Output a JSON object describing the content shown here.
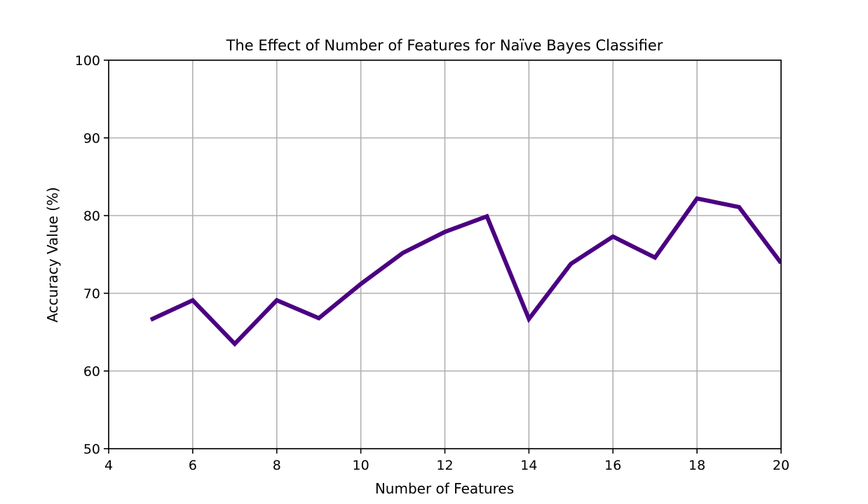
{
  "chart_data": {
    "type": "line",
    "title": "The Effect of Number of Features for Naïve Bayes Classifier",
    "xlabel": "Number of Features",
    "ylabel": "Accuracy Value (%)",
    "xlim": [
      4,
      20
    ],
    "ylim": [
      50,
      100
    ],
    "xticks": [
      "4",
      "6",
      "8",
      "10",
      "12",
      "14",
      "16",
      "18",
      "20"
    ],
    "yticks": [
      "50",
      "60",
      "70",
      "80",
      "90",
      "100"
    ],
    "grid": true,
    "series": [
      {
        "color": "#4b0082",
        "x": [
          5,
          6,
          7,
          8,
          9,
          10,
          11,
          12,
          13,
          14,
          15,
          16,
          17,
          18,
          19,
          20
        ],
        "y": [
          66.6,
          69.1,
          63.5,
          69.1,
          66.8,
          71.2,
          75.2,
          77.9,
          79.9,
          66.7,
          73.8,
          77.3,
          74.6,
          82.2,
          81.1,
          73.9
        ]
      }
    ]
  }
}
